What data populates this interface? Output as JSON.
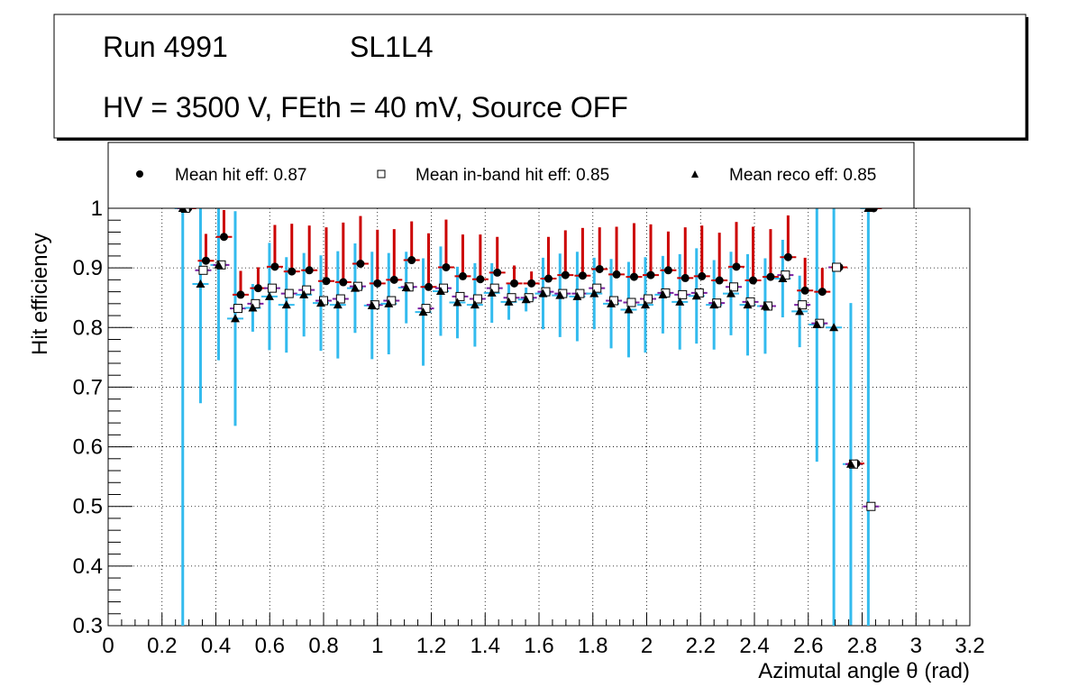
{
  "title_box": {
    "line1_run": "Run 4991",
    "line1_layer": "SL1L4",
    "line2": "HV = 3500 V, FEth = 40 mV, Source OFF"
  },
  "legend": {
    "hit": "Mean hit  eff: 0.87",
    "inband": "Mean in-band hit eff: 0.85",
    "reco": "Mean reco eff: 0.85"
  },
  "colors": {
    "hit_err": "#cc0000",
    "inband_err": "#7a1fa2",
    "reco_err": "#33bbee",
    "grid": "#000000"
  },
  "chart_data": {
    "type": "scatter",
    "xlabel": "Azimutal angle θ (rad)",
    "ylabel": "Hit efficiency",
    "xlim": [
      0,
      3.2
    ],
    "ylim": [
      0.3,
      1.0
    ],
    "xticks": [
      "0",
      "0.2",
      "0.4",
      "0.6",
      "0.8",
      "1",
      "1.2",
      "1.4",
      "1.6",
      "1.8",
      "2",
      "2.2",
      "2.4",
      "2.6",
      "2.8",
      "3",
      "3.2"
    ],
    "yticks": [
      "0.3",
      "0.4",
      "0.5",
      "0.6",
      "0.7",
      "0.8",
      "0.9",
      "1"
    ],
    "grid": true,
    "x": [
      0.287,
      0.353,
      0.42,
      0.482,
      0.547,
      0.609,
      0.672,
      0.737,
      0.8,
      0.863,
      0.927,
      0.99,
      1.052,
      1.117,
      1.18,
      1.245,
      1.307,
      1.372,
      1.435,
      1.498,
      1.562,
      1.625,
      1.688,
      1.752,
      1.815,
      1.878,
      1.943,
      2.005,
      2.07,
      2.133,
      2.195,
      2.26,
      2.323,
      2.385,
      2.45,
      2.515,
      2.578,
      2.642,
      2.705,
      2.768,
      2.833
    ],
    "series": [
      {
        "name": "Mean hit eff",
        "marker": "circle",
        "values": [
          1.0,
          0.912,
          0.952,
          0.855,
          0.866,
          0.902,
          0.894,
          0.896,
          0.878,
          0.876,
          0.907,
          0.874,
          0.88,
          0.913,
          0.868,
          0.901,
          0.886,
          0.881,
          0.892,
          0.874,
          0.874,
          0.882,
          0.888,
          0.887,
          0.898,
          0.889,
          0.885,
          0.888,
          0.896,
          0.883,
          0.886,
          0.879,
          0.902,
          0.879,
          0.885,
          0.918,
          0.862,
          0.86,
          0.901,
          0.572,
          1.0
        ],
        "err": [
          0.0,
          0.045,
          0.045,
          0.04,
          0.035,
          0.07,
          0.08,
          0.075,
          0.09,
          0.1,
          0.08,
          0.09,
          0.085,
          0.065,
          0.09,
          0.08,
          0.07,
          0.075,
          0.06,
          0.03,
          0.02,
          0.07,
          0.075,
          0.08,
          0.07,
          0.08,
          0.09,
          0.085,
          0.065,
          0.085,
          0.085,
          0.08,
          0.075,
          0.09,
          0.08,
          0.07,
          0.055,
          0.04,
          0.0,
          0.0,
          0.0
        ]
      },
      {
        "name": "Mean in-band hit eff",
        "marker": "open-square",
        "values": [
          1.0,
          0.896,
          0.905,
          0.832,
          0.84,
          0.866,
          0.857,
          0.863,
          0.845,
          0.848,
          0.869,
          0.838,
          0.845,
          0.868,
          0.832,
          0.866,
          0.852,
          0.848,
          0.866,
          0.85,
          0.85,
          0.86,
          0.857,
          0.857,
          0.866,
          0.845,
          0.842,
          0.848,
          0.858,
          0.855,
          0.858,
          0.841,
          0.868,
          0.843,
          0.836,
          0.888,
          0.838,
          0.807,
          0.901,
          0.571,
          0.5
        ]
      },
      {
        "name": "Mean reco eff",
        "marker": "triangle",
        "values": [
          1.0,
          0.873,
          0.905,
          0.815,
          0.833,
          0.852,
          0.838,
          0.855,
          0.841,
          0.838,
          0.866,
          0.837,
          0.84,
          0.867,
          0.826,
          0.861,
          0.842,
          0.838,
          0.858,
          0.843,
          0.847,
          0.857,
          0.854,
          0.852,
          0.857,
          0.84,
          0.83,
          0.838,
          0.855,
          0.843,
          0.853,
          0.838,
          0.857,
          0.838,
          0.836,
          0.882,
          0.827,
          0.805,
          0.8,
          0.571,
          1.0
        ],
        "err": [
          0.7,
          0.2,
          0.16,
          0.18,
          0.04,
          0.09,
          0.08,
          0.07,
          0.08,
          0.09,
          0.075,
          0.09,
          0.085,
          0.06,
          0.09,
          0.075,
          0.06,
          0.07,
          0.05,
          0.03,
          0.02,
          0.06,
          0.07,
          0.075,
          0.06,
          0.075,
          0.08,
          0.08,
          0.065,
          0.08,
          0.08,
          0.075,
          0.07,
          0.085,
          0.08,
          0.065,
          0.06,
          0.23,
          0.5,
          0.27,
          0.7
        ]
      }
    ]
  }
}
